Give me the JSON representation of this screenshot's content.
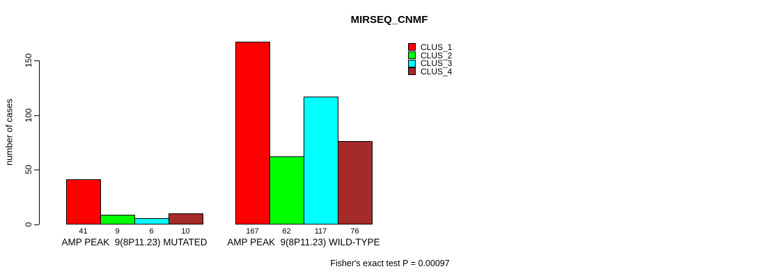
{
  "title": "MIRSEQ_CNMF",
  "footer": "Fisher's exact test P = 0.00097",
  "colors": {
    "background": "#ffffff",
    "axis": "#000000",
    "clus_1": "#ff0000",
    "clus_2": "#00ff00",
    "clus_3": "#00ffff",
    "clus_4": "#a52a2a"
  },
  "chart_data": {
    "type": "bar",
    "title": "MIRSEQ_CNMF",
    "xlabel": "",
    "ylabel": "number of cases",
    "ylim": [
      0,
      167
    ],
    "yticks": [
      0,
      50,
      100,
      150
    ],
    "grid": false,
    "legend_position": "top-right",
    "categories": [
      "AMP PEAK  9(8P11.23) MUTATED",
      "AMP PEAK  9(8P11.23) WILD-TYPE"
    ],
    "series": [
      {
        "name": "CLUS_1",
        "color": "#ff0000",
        "values": [
          41,
          167
        ]
      },
      {
        "name": "CLUS_2",
        "color": "#00ff00",
        "values": [
          9,
          62
        ]
      },
      {
        "name": "CLUS_3",
        "color": "#00ffff",
        "values": [
          6,
          117
        ]
      },
      {
        "name": "CLUS_4",
        "color": "#a52a2a",
        "values": [
          10,
          76
        ]
      }
    ],
    "bar_value_labels": [
      [
        41,
        9,
        6,
        10
      ],
      [
        167,
        62,
        117,
        76
      ]
    ],
    "annotation": "Fisher's exact test P = 0.00097"
  }
}
